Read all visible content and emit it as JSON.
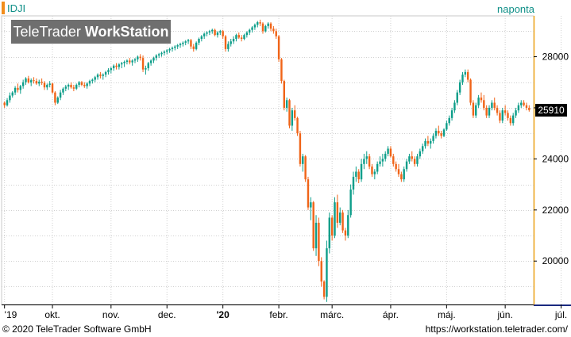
{
  "header": {
    "symbol": "IDJI",
    "interval": "naponta",
    "brand_regular": "TeleTrader ",
    "brand_bold": "WorkStation"
  },
  "footer": {
    "copyright": "© 2020 TeleTrader Software GmbH",
    "url": "https://workstation.teletrader.com/"
  },
  "last_price_label": "25910",
  "colors": {
    "up": "#0e9e8a",
    "down": "#f06418",
    "accent": "#f2a81d",
    "grid": "#d0d0d0"
  },
  "chart_data": {
    "type": "candlestick",
    "ylim": [
      18300,
      29600
    ],
    "y_ticks": [
      20000,
      22000,
      24000,
      26000,
      28000
    ],
    "y_tick_labels": [
      "20000",
      "22000",
      "24000",
      "",
      "28000"
    ],
    "x_labels": [
      "'19",
      "okt.",
      "nov.",
      "dec.",
      "'20",
      "febr.",
      "márc.",
      "ápr.",
      "máj.",
      "jún.",
      "júl."
    ],
    "x_label_index": [
      0,
      18,
      40,
      61,
      82,
      103,
      123,
      145,
      166,
      188,
      209
    ],
    "last_price": 25910,
    "ohlc": [
      [
        26200,
        26250,
        26000,
        26100
      ],
      [
        26100,
        26380,
        26050,
        26300
      ],
      [
        26300,
        26600,
        26200,
        26480
      ],
      [
        26480,
        26650,
        26400,
        26600
      ],
      [
        26600,
        26850,
        26500,
        26780
      ],
      [
        26780,
        26950,
        26600,
        26700
      ],
      [
        26700,
        26900,
        26550,
        26850
      ],
      [
        26850,
        27100,
        26750,
        27000
      ],
      [
        27000,
        27200,
        26900,
        27150
      ],
      [
        27150,
        27250,
        26950,
        27000
      ],
      [
        27000,
        27150,
        26850,
        27080
      ],
      [
        27080,
        27200,
        26950,
        27050
      ],
      [
        27050,
        27150,
        26900,
        26950
      ],
      [
        26950,
        27100,
        26850,
        27020
      ],
      [
        27020,
        27150,
        26900,
        26980
      ],
      [
        26980,
        27050,
        26700,
        26800
      ],
      [
        26800,
        26950,
        26700,
        26900
      ],
      [
        26900,
        27050,
        26800,
        26950
      ],
      [
        26950,
        26980,
        26550,
        26600
      ],
      [
        26600,
        26650,
        26100,
        26200
      ],
      [
        26200,
        26450,
        26150,
        26400
      ],
      [
        26400,
        26700,
        26300,
        26600
      ],
      [
        26600,
        26800,
        26500,
        26750
      ],
      [
        26750,
        26900,
        26650,
        26830
      ],
      [
        26830,
        26950,
        26700,
        26900
      ],
      [
        26900,
        27000,
        26750,
        26800
      ],
      [
        26800,
        26900,
        26650,
        26750
      ],
      [
        26750,
        26950,
        26700,
        26900
      ],
      [
        26900,
        27050,
        26800,
        27000
      ],
      [
        27000,
        27050,
        26850,
        26900
      ],
      [
        26900,
        27000,
        26780,
        26850
      ],
      [
        26850,
        27000,
        26750,
        26950
      ],
      [
        26950,
        27100,
        26850,
        27050
      ],
      [
        27050,
        27150,
        26950,
        27100
      ],
      [
        27100,
        27250,
        27000,
        27200
      ],
      [
        27200,
        27350,
        27100,
        27300
      ],
      [
        27300,
        27400,
        27150,
        27250
      ],
      [
        27250,
        27350,
        27100,
        27300
      ],
      [
        27300,
        27450,
        27200,
        27400
      ],
      [
        27400,
        27550,
        27300,
        27480
      ],
      [
        27480,
        27600,
        27350,
        27550
      ],
      [
        27550,
        27700,
        27450,
        27650
      ],
      [
        27650,
        27750,
        27500,
        27600
      ],
      [
        27600,
        27750,
        27500,
        27700
      ],
      [
        27700,
        27800,
        27550,
        27750
      ],
      [
        27750,
        27850,
        27600,
        27800
      ],
      [
        27800,
        27900,
        27700,
        27850
      ],
      [
        27850,
        27950,
        27700,
        27780
      ],
      [
        27780,
        27900,
        27650,
        27850
      ],
      [
        27850,
        27950,
        27750,
        27900
      ],
      [
        27900,
        28050,
        27800,
        28000
      ],
      [
        28000,
        28100,
        27850,
        27950
      ],
      [
        27950,
        28050,
        27400,
        27500
      ],
      [
        27500,
        27650,
        27300,
        27550
      ],
      [
        27550,
        27800,
        27450,
        27750
      ],
      [
        27750,
        27900,
        27650,
        27850
      ],
      [
        27850,
        28000,
        27750,
        27950
      ],
      [
        27950,
        28100,
        27850,
        28050
      ],
      [
        28050,
        28150,
        27950,
        28100
      ],
      [
        28100,
        28200,
        28000,
        28150
      ],
      [
        28150,
        28250,
        28050,
        28200
      ],
      [
        28200,
        28300,
        28100,
        28250
      ],
      [
        28250,
        28350,
        28150,
        28300
      ],
      [
        28300,
        28400,
        28200,
        28350
      ],
      [
        28350,
        28450,
        28250,
        28400
      ],
      [
        28400,
        28500,
        28300,
        28450
      ],
      [
        28450,
        28550,
        28350,
        28500
      ],
      [
        28500,
        28600,
        28400,
        28550
      ],
      [
        28550,
        28650,
        28450,
        28600
      ],
      [
        28600,
        28700,
        28500,
        28650
      ],
      [
        28650,
        28700,
        28300,
        28400
      ],
      [
        28400,
        28500,
        28200,
        28300
      ],
      [
        28300,
        28600,
        28250,
        28550
      ],
      [
        28550,
        28750,
        28450,
        28700
      ],
      [
        28700,
        28850,
        28600,
        28800
      ],
      [
        28800,
        28950,
        28700,
        28900
      ],
      [
        28900,
        29000,
        28800,
        28950
      ],
      [
        28950,
        29050,
        28850,
        29000
      ],
      [
        29000,
        29100,
        28900,
        29050
      ],
      [
        29050,
        29100,
        28800,
        28850
      ],
      [
        28850,
        29000,
        28750,
        28950
      ],
      [
        28950,
        29050,
        28850,
        29000
      ],
      [
        29000,
        29050,
        28700,
        28800
      ],
      [
        28800,
        28850,
        28200,
        28300
      ],
      [
        28300,
        28600,
        28200,
        28500
      ],
      [
        28500,
        28700,
        28400,
        28600
      ],
      [
        28600,
        28800,
        28500,
        28700
      ],
      [
        28700,
        28900,
        28600,
        28850
      ],
      [
        28850,
        28950,
        28700,
        28750
      ],
      [
        28750,
        28850,
        28600,
        28700
      ],
      [
        28700,
        28900,
        28650,
        28850
      ],
      [
        28850,
        29000,
        28750,
        28950
      ],
      [
        28950,
        29100,
        28850,
        29050
      ],
      [
        29050,
        29200,
        28950,
        29150
      ],
      [
        29150,
        29300,
        29050,
        29250
      ],
      [
        29250,
        29400,
        29150,
        29350
      ],
      [
        29350,
        29450,
        29200,
        29300
      ],
      [
        29300,
        29350,
        28900,
        29000
      ],
      [
        29000,
        29250,
        28950,
        29200
      ],
      [
        29200,
        29350,
        29100,
        29300
      ],
      [
        29300,
        29350,
        29000,
        29100
      ],
      [
        29100,
        29200,
        28900,
        29000
      ],
      [
        29000,
        29100,
        28700,
        28800
      ],
      [
        28800,
        28850,
        27800,
        27900
      ],
      [
        27900,
        27950,
        26950,
        27050
      ],
      [
        27050,
        27100,
        25900,
        26000
      ],
      [
        26000,
        26400,
        25850,
        26300
      ],
      [
        26300,
        26350,
        25200,
        25300
      ],
      [
        25300,
        26000,
        25100,
        25900
      ],
      [
        25900,
        26100,
        25500,
        25600
      ],
      [
        25600,
        25650,
        24900,
        25000
      ],
      [
        25000,
        25100,
        23700,
        23800
      ],
      [
        23800,
        24200,
        23500,
        24100
      ],
      [
        24100,
        24150,
        23100,
        23200
      ],
      [
        23200,
        23300,
        22000,
        22100
      ],
      [
        22100,
        22500,
        21600,
        22300
      ],
      [
        22300,
        22350,
        20400,
        20500
      ],
      [
        20500,
        21800,
        20200,
        21500
      ],
      [
        21500,
        21700,
        19800,
        20000
      ],
      [
        20000,
        20150,
        19000,
        19200
      ],
      [
        19200,
        19250,
        18500,
        18600
      ],
      [
        18600,
        20800,
        18400,
        20500
      ],
      [
        20500,
        21900,
        20300,
        21700
      ],
      [
        21700,
        21800,
        20800,
        21000
      ],
      [
        21000,
        22500,
        20900,
        22300
      ],
      [
        22300,
        22600,
        21300,
        21500
      ],
      [
        21500,
        22100,
        21400,
        21900
      ],
      [
        21900,
        22000,
        21100,
        21200
      ],
      [
        21200,
        21300,
        20800,
        21000
      ],
      [
        21000,
        22000,
        20900,
        21800
      ],
      [
        21800,
        23000,
        21700,
        22800
      ],
      [
        22800,
        23500,
        22600,
        23300
      ],
      [
        23300,
        23700,
        23100,
        23500
      ],
      [
        23500,
        23600,
        23050,
        23200
      ],
      [
        23200,
        24000,
        23100,
        23800
      ],
      [
        23800,
        24200,
        23600,
        24000
      ],
      [
        24000,
        24300,
        23800,
        24100
      ],
      [
        24100,
        24200,
        23600,
        23700
      ],
      [
        23700,
        23800,
        23300,
        23400
      ],
      [
        23400,
        23600,
        23200,
        23500
      ],
      [
        23500,
        23900,
        23400,
        23800
      ],
      [
        23800,
        24100,
        23700,
        23900
      ],
      [
        23900,
        24200,
        23700,
        24000
      ],
      [
        24000,
        24300,
        23900,
        24200
      ],
      [
        24200,
        24500,
        24100,
        24400
      ],
      [
        24400,
        24500,
        24050,
        24100
      ],
      [
        24100,
        24200,
        23700,
        23800
      ],
      [
        23800,
        23900,
        23500,
        23600
      ],
      [
        23600,
        23800,
        23300,
        23400
      ],
      [
        23400,
        23500,
        23100,
        23200
      ],
      [
        23200,
        23700,
        23100,
        23600
      ],
      [
        23600,
        24000,
        23500,
        23900
      ],
      [
        23900,
        24200,
        23800,
        24100
      ],
      [
        24100,
        24300,
        23900,
        24000
      ],
      [
        24000,
        24100,
        23700,
        23800
      ],
      [
        23800,
        24200,
        23700,
        24100
      ],
      [
        24100,
        24400,
        24000,
        24300
      ],
      [
        24300,
        24600,
        24200,
        24500
      ],
      [
        24500,
        24800,
        24400,
        24700
      ],
      [
        24700,
        24900,
        24500,
        24600
      ],
      [
        24600,
        24800,
        24400,
        24700
      ],
      [
        24700,
        25000,
        24600,
        24900
      ],
      [
        24900,
        25200,
        24800,
        25100
      ],
      [
        25100,
        25300,
        24900,
        25000
      ],
      [
        25000,
        25100,
        24800,
        24900
      ],
      [
        24900,
        25200,
        24850,
        25150
      ],
      [
        25150,
        25500,
        25100,
        25400
      ],
      [
        25400,
        25700,
        25300,
        25600
      ],
      [
        25600,
        26000,
        25500,
        25900
      ],
      [
        25900,
        26300,
        25800,
        26200
      ],
      [
        26200,
        26700,
        26100,
        26600
      ],
      [
        26600,
        27100,
        26500,
        27000
      ],
      [
        27000,
        27400,
        26900,
        27300
      ],
      [
        27300,
        27500,
        27200,
        27400
      ],
      [
        27400,
        27500,
        27000,
        27100
      ],
      [
        27100,
        27150,
        26100,
        26200
      ],
      [
        26200,
        26300,
        25600,
        25700
      ],
      [
        25700,
        26200,
        25600,
        26100
      ],
      [
        26100,
        26500,
        26000,
        26400
      ],
      [
        26400,
        26600,
        26200,
        26300
      ],
      [
        26300,
        26500,
        25900,
        26000
      ],
      [
        26000,
        26100,
        25600,
        25700
      ],
      [
        25700,
        26100,
        25600,
        26000
      ],
      [
        26000,
        26300,
        25900,
        26200
      ],
      [
        26200,
        26400,
        25900,
        26000
      ],
      [
        26000,
        26100,
        25700,
        25800
      ],
      [
        25800,
        25900,
        25400,
        25500
      ],
      [
        25500,
        26000,
        25400,
        25900
      ],
      [
        25900,
        26100,
        25700,
        25800
      ],
      [
        25800,
        25900,
        25500,
        25600
      ],
      [
        25600,
        25700,
        25300,
        25400
      ],
      [
        25400,
        25800,
        25300,
        25700
      ],
      [
        25700,
        26000,
        25600,
        25900
      ],
      [
        25900,
        26200,
        25800,
        26100
      ],
      [
        26100,
        26300,
        26000,
        26200
      ],
      [
        26200,
        26300,
        26050,
        26100
      ],
      [
        26100,
        26200,
        25900,
        26000
      ],
      [
        26000,
        26100,
        25850,
        25910
      ]
    ]
  }
}
